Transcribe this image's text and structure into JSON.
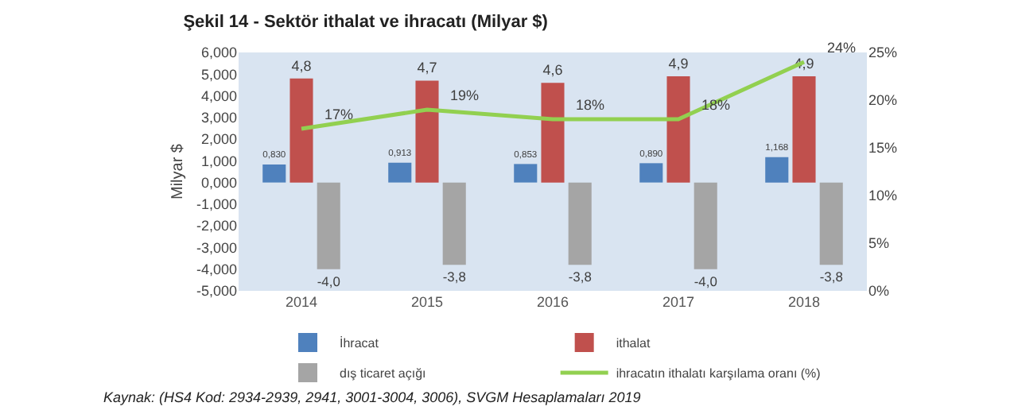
{
  "chart_data": {
    "type": "bar",
    "title": "Şekil 14 - Sektör ithalat ve ihracatı (Milyar $)",
    "ylabel": "Milyar $",
    "categories": [
      "2014",
      "2015",
      "2016",
      "2017",
      "2018"
    ],
    "series": [
      {
        "name": "İhracat",
        "color": "#4f81bd",
        "values": [
          0.83,
          0.913,
          0.853,
          0.89,
          1.168
        ],
        "value_labels": [
          "0,830",
          "0,913",
          "0,853",
          "0,890",
          "1,168"
        ]
      },
      {
        "name": "ithalat",
        "color": "#c0504d",
        "values": [
          4.8,
          4.7,
          4.6,
          4.9,
          4.9
        ],
        "value_labels": [
          "4,8",
          "4,7",
          "4,6",
          "4,9",
          "4,9"
        ]
      },
      {
        "name": "dış ticaret açığı",
        "color": "#a5a5a5",
        "values": [
          -4.0,
          -3.8,
          -3.8,
          -4.0,
          -3.8
        ],
        "value_labels": [
          "-4,0",
          "-3,8",
          "-3,8",
          "-4,0",
          "-3,8"
        ]
      },
      {
        "name": "ihracatın ithalatı karşılama oranı (%)",
        "type": "line",
        "axis": "y2",
        "color": "#92d050",
        "values": [
          17,
          19,
          18,
          18,
          24
        ],
        "value_labels": [
          "17%",
          "19%",
          "18%",
          "18%",
          "24%"
        ]
      }
    ],
    "ylim": [
      -5,
      6
    ],
    "yticks": [
      {
        "value": -5,
        "label": "-5,000"
      },
      {
        "value": -4,
        "label": "-4,000"
      },
      {
        "value": -3,
        "label": "-3,000"
      },
      {
        "value": -2,
        "label": "-2,000"
      },
      {
        "value": -1,
        "label": "-1,000"
      },
      {
        "value": 0,
        "label": "0,000"
      },
      {
        "value": 1,
        "label": "1,000"
      },
      {
        "value": 2,
        "label": "2,000"
      },
      {
        "value": 3,
        "label": "3,000"
      },
      {
        "value": 4,
        "label": "4,000"
      },
      {
        "value": 5,
        "label": "5,000"
      },
      {
        "value": 6,
        "label": "6,000"
      }
    ],
    "y2lim": [
      0,
      25
    ],
    "y2ticks": [
      {
        "value": 0,
        "label": "0%"
      },
      {
        "value": 5,
        "label": "5%"
      },
      {
        "value": 10,
        "label": "10%"
      },
      {
        "value": 15,
        "label": "15%"
      },
      {
        "value": 20,
        "label": "20%"
      },
      {
        "value": 25,
        "label": "25%"
      }
    ],
    "legend": "bottom",
    "marker": "none",
    "line_style": "solid",
    "annotations": [
      "Kaynak: (HS4 Kod: 2934-2939, 2941, 3001-3004, 3006), SVGM Hesaplamaları 2019"
    ]
  }
}
